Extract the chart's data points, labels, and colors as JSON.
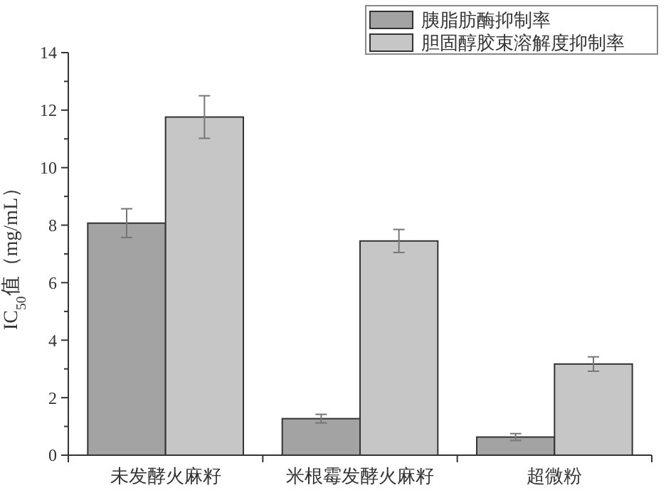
{
  "chart_data": {
    "type": "bar",
    "ylabel": "IC$_{50}$值（mg/mL）",
    "categories": [
      "未发酵火麻籽",
      "米根霉发酵火麻籽",
      "超微粉"
    ],
    "series": [
      {
        "name": "胰脂肪酶抑制率",
        "color": "#a3a3a3",
        "values": [
          8.07,
          1.27,
          0.63
        ],
        "errors": [
          0.5,
          0.15,
          0.12
        ]
      },
      {
        "name": "胆固醇胶束溶解度抑制率",
        "color": "#c6c6c6",
        "values": [
          11.76,
          7.45,
          3.17
        ],
        "errors": [
          0.74,
          0.4,
          0.25
        ]
      }
    ],
    "ylim": [
      0,
      14
    ],
    "yticks": [
      0,
      2,
      4,
      6,
      8,
      10,
      12,
      14
    ],
    "grid": false,
    "legend": "top right"
  }
}
